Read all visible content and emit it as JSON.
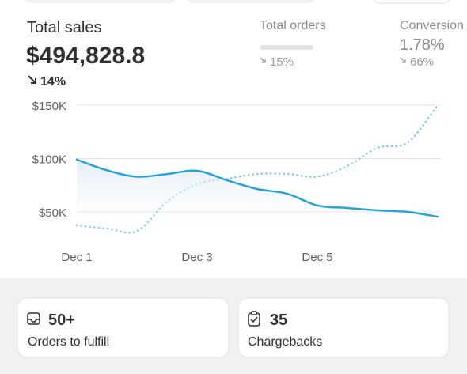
{
  "summary": {
    "title": "Total sales",
    "value": "$494,828.8",
    "change": "14%"
  },
  "metrics": [
    {
      "title": "Total orders",
      "change": "15%"
    },
    {
      "title": "Conversion",
      "value": "1.78%",
      "change": "66%"
    }
  ],
  "chart_data": {
    "type": "line",
    "categories": [
      "Dec 1",
      null,
      null,
      null,
      "Dec 3",
      null,
      null,
      null,
      "Dec 5",
      null,
      null,
      null,
      null
    ],
    "series": [
      {
        "color": "#29a3d6",
        "style": "solid",
        "fill": true,
        "values": [
          99000,
          89000,
          83000,
          85500,
          88500,
          79600,
          71500,
          67000,
          56000,
          53700,
          51500,
          50000,
          45500
        ]
      },
      {
        "color": "#7cc7e6",
        "style": "dotted",
        "values": [
          37400,
          34400,
          32000,
          59600,
          76000,
          81000,
          85500,
          85500,
          83000,
          93000,
          110000,
          115000,
          150000
        ]
      }
    ],
    "ylim": [
      25000,
      150000
    ],
    "yticks": [
      {
        "value": 50000,
        "label": "$50K"
      },
      {
        "value": 100000,
        "label": "$100K"
      },
      {
        "value": 150000,
        "label": "$150K"
      }
    ],
    "grid": true
  },
  "cards": [
    {
      "value": "50+",
      "label": "Orders to fulfill"
    },
    {
      "value": "35",
      "label": "Chargebacks"
    }
  ]
}
